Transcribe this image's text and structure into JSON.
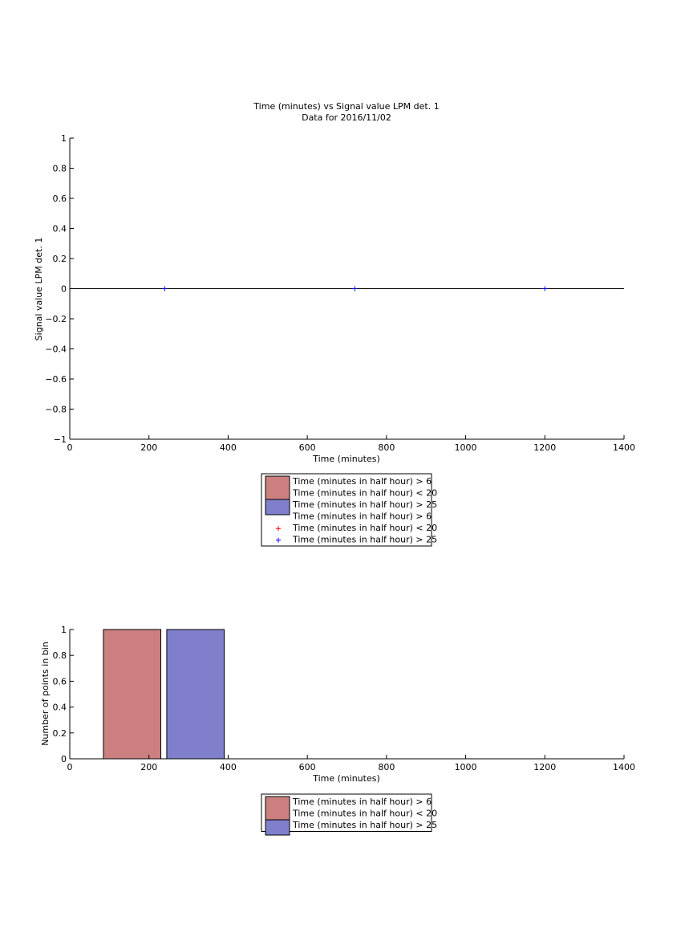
{
  "chart_data": [
    {
      "type": "scatter",
      "title": "Time (minutes) vs Signal value LPM det. 1",
      "subtitle": "Data for 2016/11/02",
      "xlabel": "Time (minutes)",
      "ylabel": "Signal value LPM det. 1",
      "xlim": [
        0,
        1400
      ],
      "ylim": [
        -1,
        1
      ],
      "xticks": [
        "0",
        "200",
        "400",
        "600",
        "800",
        "1000",
        "1200",
        "1400"
      ],
      "yticks": [
        "1",
        "0.8",
        "0.6",
        "0.4",
        "0.2",
        "0",
        "−0.2",
        "−0.4",
        "−0.6",
        "−0.8",
        "−1"
      ],
      "baseline": {
        "x": [
          0,
          1400
        ],
        "y": [
          0,
          0
        ],
        "color": "#000000"
      },
      "series": [
        {
          "marker": "+",
          "color": "#0000ff",
          "x": [
            240,
            720,
            1200
          ],
          "y": [
            0,
            0,
            0
          ]
        }
      ],
      "legend": {
        "placement": "below",
        "entries": [
          {
            "kind": "patch",
            "color": "#cc7f7f",
            "lines": [
              "Time (minutes in half hour) > 6",
              "Time (minutes in half hour) < 20"
            ]
          },
          {
            "kind": "patch",
            "color": "#7f7fcc",
            "lines": [
              "Time (minutes in half hour) > 25"
            ]
          },
          {
            "kind": "none",
            "lines": [
              "Time (minutes in half hour) > 6"
            ]
          },
          {
            "kind": "marker",
            "color": "#ff0000",
            "lines": [
              "Time (minutes in half hour) < 20"
            ]
          },
          {
            "kind": "marker",
            "color": "#0000ff",
            "lines": [
              "Time (minutes in half hour) > 25"
            ]
          }
        ]
      }
    },
    {
      "type": "bar",
      "xlabel": "Time (minutes)",
      "ylabel": "Number of points in bin",
      "xlim": [
        0,
        1400
      ],
      "ylim": [
        0,
        1
      ],
      "xticks": [
        "0",
        "200",
        "400",
        "600",
        "800",
        "1000",
        "1200",
        "1400"
      ],
      "yticks": [
        "1",
        "0.8",
        "0.6",
        "0.4",
        "0.2",
        "0"
      ],
      "bars": [
        {
          "x0": 85,
          "x1": 230,
          "value": 1,
          "color": "#cc7f7f"
        },
        {
          "x0": 245,
          "x1": 390,
          "value": 1,
          "color": "#7f7fcc"
        }
      ],
      "legend": {
        "placement": "below",
        "entries": [
          {
            "kind": "patch",
            "color": "#cc7f7f",
            "lines": [
              "Time (minutes in half hour) > 6",
              "Time (minutes in half hour) < 20"
            ]
          },
          {
            "kind": "patch",
            "color": "#7f7fcc",
            "lines": [
              "Time (minutes in half hour) > 25"
            ]
          }
        ]
      }
    }
  ]
}
